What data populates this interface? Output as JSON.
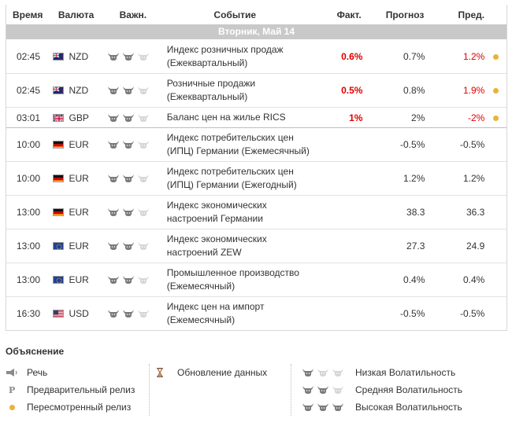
{
  "headers": {
    "time": "Время",
    "currency": "Валюта",
    "importance": "Важн.",
    "event": "Событие",
    "actual": "Факт.",
    "forecast": "Прогноз",
    "previous": "Пред."
  },
  "day_label": "Вторник, Май 14",
  "colors": {
    "red": "#e00000",
    "dot": "#e9b33c",
    "day_bar": "#c9c9c9"
  },
  "rows": [
    {
      "time": "02:45",
      "flag": "nz",
      "currency": "NZD",
      "importance": 2,
      "event_line1": "Индекс розничных продаж",
      "event_line2": "(Ежеквартальный)",
      "actual": "0.6%",
      "forecast": "0.7%",
      "previous": "1.2%",
      "previous_red": true,
      "revised": true
    },
    {
      "time": "02:45",
      "flag": "nz",
      "currency": "NZD",
      "importance": 2,
      "event_line1": "Розничные продажи",
      "event_line2": "(Ежеквартальный)",
      "actual": "0.5%",
      "forecast": "0.8%",
      "previous": "1.9%",
      "previous_red": true,
      "revised": true
    },
    {
      "time": "03:01",
      "flag": "gb",
      "currency": "GBP",
      "importance": 2,
      "event_line1": "Баланс цен на жилье RICS",
      "event_line2": "",
      "actual": "1%",
      "forecast": "2%",
      "previous": "-2%",
      "previous_red": true,
      "revised": true
    },
    {
      "time": "10:00",
      "flag": "de",
      "currency": "EUR",
      "importance": 2,
      "event_line1": "Индекс потребительских цен",
      "event_line2": "(ИПЦ) Германии (Ежемесячный)",
      "actual": "",
      "forecast": "-0.5%",
      "previous": "-0.5%",
      "previous_red": false,
      "revised": false
    },
    {
      "time": "10:00",
      "flag": "de",
      "currency": "EUR",
      "importance": 2,
      "event_line1": "Индекс потребительских цен",
      "event_line2": "(ИПЦ) Германии (Ежегодный)",
      "actual": "",
      "forecast": "1.2%",
      "previous": "1.2%",
      "previous_red": false,
      "revised": false
    },
    {
      "time": "13:00",
      "flag": "de",
      "currency": "EUR",
      "importance": 2,
      "event_line1": "Индекс экономических",
      "event_line2": "настроений Германии",
      "actual": "",
      "forecast": "38.3",
      "previous": "36.3",
      "previous_red": false,
      "revised": false
    },
    {
      "time": "13:00",
      "flag": "eu",
      "currency": "EUR",
      "importance": 2,
      "event_line1": "Индекс экономических",
      "event_line2": "настроений ZEW",
      "actual": "",
      "forecast": "27.3",
      "previous": "24.9",
      "previous_red": false,
      "revised": false
    },
    {
      "time": "13:00",
      "flag": "eu",
      "currency": "EUR",
      "importance": 2,
      "event_line1": "Промышленное производство",
      "event_line2": "(Ежемесячный)",
      "actual": "",
      "forecast": "0.4%",
      "previous": "0.4%",
      "previous_red": false,
      "revised": false
    },
    {
      "time": "16:30",
      "flag": "us",
      "currency": "USD",
      "importance": 2,
      "event_line1": "Индекс цен на импорт",
      "event_line2": "(Ежемесячный)",
      "actual": "",
      "forecast": "-0.5%",
      "previous": "-0.5%",
      "previous_red": false,
      "revised": false
    }
  ],
  "legend": {
    "title": "Объяснение",
    "speech": "Речь",
    "preliminary": "Предварительный релиз",
    "revised": "Пересмотренный релиз",
    "data_update": "Обновление данных",
    "low": "Низкая Волатильность",
    "medium": "Средняя Волатильность",
    "high": "Высокая Волатильность",
    "preliminary_icon_letter": "P"
  }
}
